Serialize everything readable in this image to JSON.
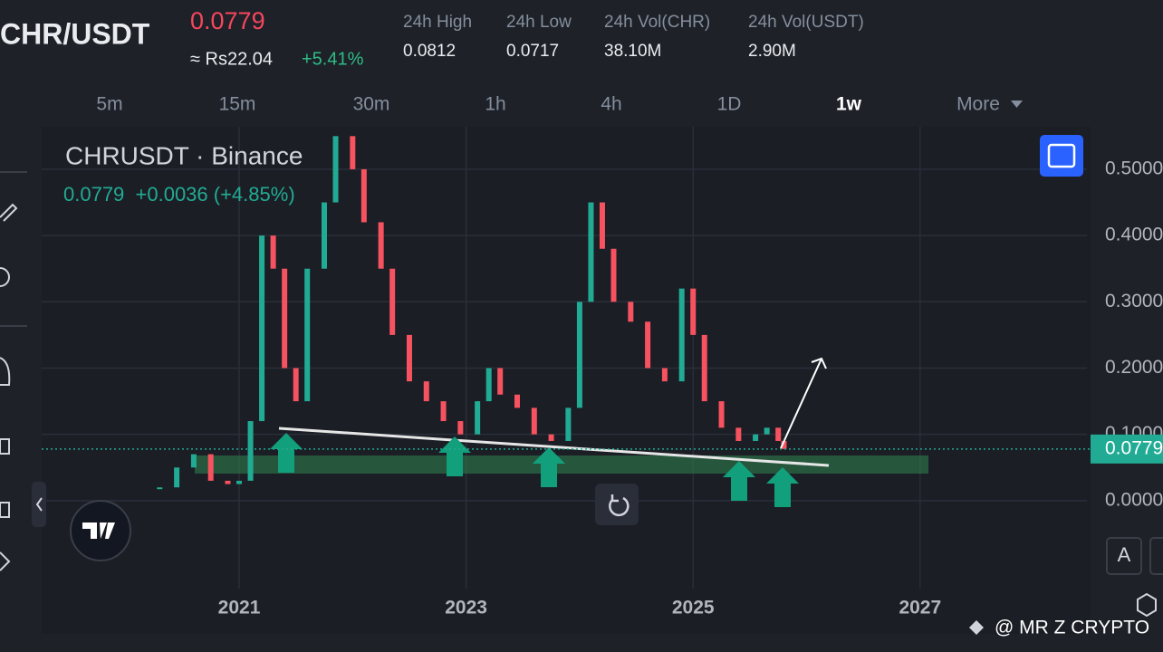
{
  "header": {
    "pair": "CHR/USDT",
    "price": "0.0779",
    "fiat": "≈ Rs22.04",
    "change": "+5.41%",
    "stats": [
      {
        "label": "24h High",
        "value": "0.0812"
      },
      {
        "label": "24h Low",
        "value": "0.0717"
      },
      {
        "label": "24h Vol(CHR)",
        "value": "38.10M"
      },
      {
        "label": "24h Vol(USDT)",
        "value": "2.90M"
      }
    ]
  },
  "timeframes": [
    "5m",
    "15m",
    "30m",
    "1h",
    "4h",
    "1D",
    "1w",
    "More"
  ],
  "active_timeframe": "1w",
  "chart_data": {
    "type": "candlestick",
    "title": "CHRUSDT · Binance",
    "subtitle": "0.0779  +0.0036 (+4.85%)",
    "x": [
      2020.3,
      2020.45,
      2020.6,
      2020.75,
      2020.9,
      2021.0,
      2021.1,
      2021.2,
      2021.3,
      2021.4,
      2021.5,
      2021.6,
      2021.75,
      2021.85,
      2022.0,
      2022.1,
      2022.25,
      2022.35,
      2022.5,
      2022.65,
      2022.8,
      2022.95,
      2023.1,
      2023.2,
      2023.3,
      2023.45,
      2023.6,
      2023.75,
      2023.9,
      2024.0,
      2024.1,
      2024.2,
      2024.3,
      2024.45,
      2024.6,
      2024.75,
      2024.9,
      2025.0,
      2025.1,
      2025.25,
      2025.4,
      2025.55,
      2025.65,
      2025.75,
      2025.8
    ],
    "values": [
      0.02,
      0.05,
      0.07,
      0.03,
      0.025,
      0.03,
      0.12,
      0.4,
      0.35,
      0.2,
      0.15,
      0.35,
      0.45,
      0.55,
      0.5,
      0.42,
      0.35,
      0.25,
      0.18,
      0.15,
      0.12,
      0.1,
      0.15,
      0.2,
      0.16,
      0.14,
      0.1,
      0.09,
      0.14,
      0.3,
      0.45,
      0.38,
      0.3,
      0.27,
      0.2,
      0.18,
      0.32,
      0.25,
      0.15,
      0.11,
      0.09,
      0.1,
      0.11,
      0.09,
      0.0779
    ],
    "up_color": "#22ab94",
    "down_color": "#f7525f",
    "xlim": [
      2019.26,
      2028.47
    ],
    "xticks": [
      2021,
      2023,
      2025,
      2027
    ],
    "ylim": [
      -0.13,
      0.56
    ],
    "yticks": [
      {
        "value": 0,
        "label": "0.0000"
      },
      {
        "value": 0.1,
        "label": "0.1000"
      },
      {
        "value": 0.2,
        "label": "0.2000"
      },
      {
        "value": 0.3,
        "label": "0.3000"
      },
      {
        "value": 0.4,
        "label": "0.4000"
      },
      {
        "value": 0.5,
        "label": "0.5000"
      }
    ],
    "grid": true,
    "last_label": "0.0779"
  },
  "scale_button": "A",
  "watermark": "@ MR Z CRYPTO"
}
